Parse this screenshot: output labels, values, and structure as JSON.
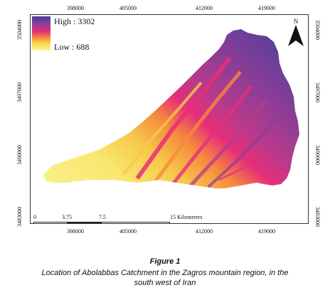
{
  "legend": {
    "high": "High : 3302",
    "low": "Low : 688"
  },
  "north_arrow": {
    "label": "N"
  },
  "axes": {
    "x_ticks": [
      "398000",
      "405000",
      "412000",
      "419000"
    ],
    "y_ticks": [
      "3504000",
      "3497000",
      "3490000",
      "3483000"
    ]
  },
  "scale_bar": {
    "labels": [
      "0",
      "3.75",
      "7.5",
      "15 Kilometers"
    ]
  },
  "caption": {
    "title": "Figure 1",
    "text_line1": "Location of Abolabbas Catchment in the Zagros mountain region, in the",
    "text_line2": "south west of Iran"
  },
  "colors": {
    "high": "#4b3f9c",
    "mid_high": "#8b3d96",
    "mid": "#e62e7a",
    "mid_low": "#f58a3c",
    "low": "#fbf59a"
  }
}
